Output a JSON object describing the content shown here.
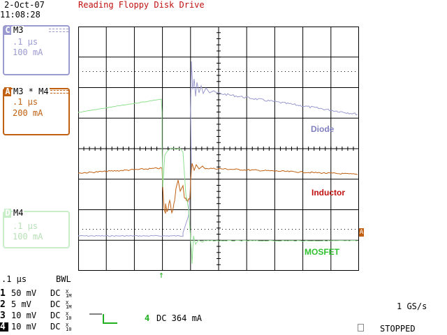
{
  "header": {
    "date": "2-Oct-07",
    "time": "11:08:28",
    "title": "Reading Floppy Disk Drive"
  },
  "colors": {
    "ch_c": "#9a9ad0",
    "ch_a": "#c06010",
    "ch_d": "#90e090",
    "title_red": "#c01010",
    "diode_label": "#8080c0",
    "inductor_label": "#c01010",
    "mosfet_label": "#30c030",
    "grid": "#000000",
    "trigger_green": "#20b020"
  },
  "channels": {
    "c": {
      "letter": "C",
      "name": "M3",
      "timebase": ".1 μs",
      "scale": "100 mA"
    },
    "a": {
      "letter": "A",
      "name": "M3 * M4",
      "timebase": ".1 μs",
      "scale": "200 mA"
    },
    "d": {
      "letter": "D",
      "name": "M4",
      "timebase": ".1 μs",
      "scale": "100 mA"
    }
  },
  "trace_labels": {
    "diode": "Diode",
    "inductor": "Inductor",
    "mosfet": "MOSFET"
  },
  "bottom": {
    "timebase": ".1 μs",
    "bwl": "BWL",
    "rows": [
      {
        "num": "1",
        "volts": "50 mV",
        "coupling": "DC",
        "probe_top": "X",
        "probe_bot": "1M"
      },
      {
        "num": "2",
        "volts": "5 mV",
        "coupling": "DC",
        "probe_top": "X",
        "probe_bot": "1M"
      },
      {
        "num": "3",
        "volts": "10 mV",
        "coupling": "DC",
        "probe_top": "X",
        "probe_bot": "10"
      },
      {
        "num": "4",
        "volts": "10 mV",
        "coupling": "DC",
        "probe_top": "X",
        "probe_bot": "10"
      }
    ],
    "trigger_channel": "4",
    "trigger_level": "DC 364 mA",
    "sample_rate": "1 GS/s",
    "status": "STOPPED"
  },
  "markers": {
    "trigger_arrow": "↑",
    "ref_marker": "A"
  }
}
